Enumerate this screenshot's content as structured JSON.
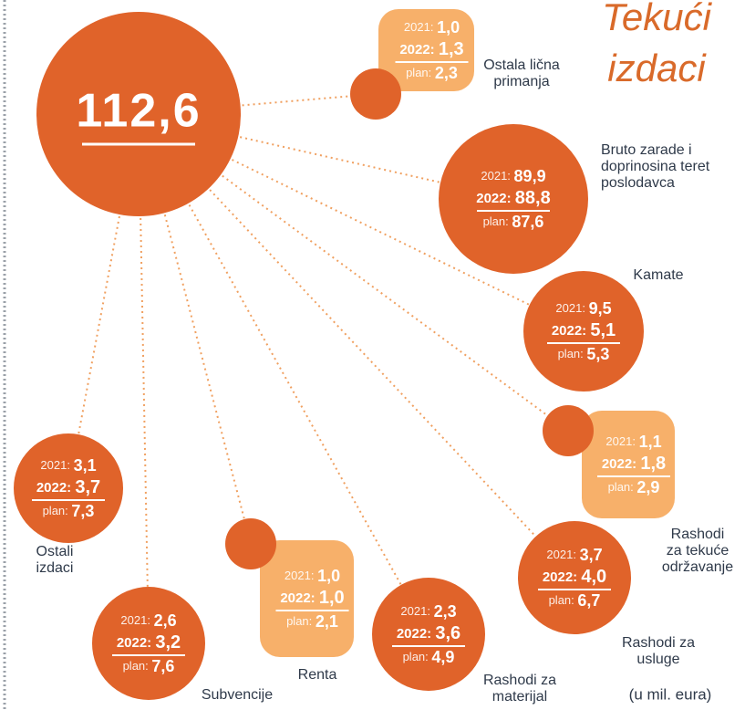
{
  "title_lines": [
    "Tekući",
    "izdaci"
  ],
  "total": "112,6",
  "unit_note": "(u mil. eura)",
  "row_labels": {
    "y2021": "2021:",
    "y2022": "2022:",
    "plan": "plan:"
  },
  "nodes": [
    {
      "label_lines": [
        "Ostala lična",
        "primanja"
      ],
      "y2021": "1,0",
      "y2022": "1,3",
      "plan": "2,3"
    },
    {
      "label_lines": [
        "Bruto zarade i",
        "doprinosina teret",
        "poslodavca"
      ],
      "y2021": "89,9",
      "y2022": "88,8",
      "plan": "87,6"
    },
    {
      "label_lines": [
        "Kamate"
      ],
      "y2021": "9,5",
      "y2022": "5,1",
      "plan": "5,3"
    },
    {
      "label_lines": [
        "Rashodi",
        "za tekuće",
        "održavanje"
      ],
      "y2021": "1,1",
      "y2022": "1,8",
      "plan": "2,9"
    },
    {
      "label_lines": [
        "Rashodi za",
        "usluge"
      ],
      "y2021": "3,7",
      "y2022": "4,0",
      "plan": "6,7"
    },
    {
      "label_lines": [
        "Rashodi za",
        "materijal"
      ],
      "y2021": "2,3",
      "y2022": "3,6",
      "plan": "4,9"
    },
    {
      "label_lines": [
        "Renta"
      ],
      "y2021": "1,0",
      "y2022": "1,0",
      "plan": "2,1"
    },
    {
      "label_lines": [
        "Subvencije"
      ],
      "y2021": "2,6",
      "y2022": "3,2",
      "plan": "7,6"
    },
    {
      "label_lines": [
        "Ostali",
        "izdaci"
      ],
      "y2021": "3,1",
      "y2022": "3,7",
      "plan": "7,3"
    }
  ]
}
